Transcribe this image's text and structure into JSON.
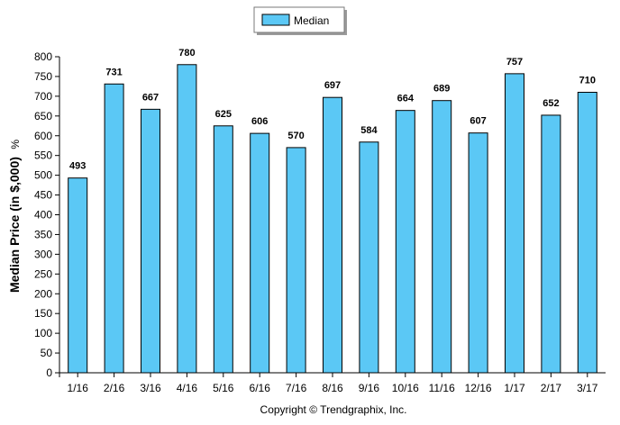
{
  "chart_data": {
    "type": "bar",
    "title": "",
    "xlabel": "",
    "ylabel": "Median Price (in $,000)",
    "ylabel_suffix": "%",
    "categories": [
      "1/16",
      "2/16",
      "3/16",
      "4/16",
      "5/16",
      "6/16",
      "7/16",
      "8/16",
      "9/16",
      "10/16",
      "11/16",
      "12/16",
      "1/17",
      "2/17",
      "3/17"
    ],
    "series": [
      {
        "name": "Median",
        "values": [
          493,
          731,
          667,
          780,
          625,
          606,
          570,
          697,
          584,
          664,
          689,
          607,
          757,
          652,
          710
        ]
      }
    ],
    "ylim": [
      0,
      800
    ],
    "ytick_step": 50,
    "grid": false,
    "legend_position": "top-center",
    "bar_color": "#5bc8f5",
    "bar_stroke": "#000000",
    "legend_bg": "#ffffff"
  },
  "footer": "Copyright © Trendgraphix, Inc."
}
